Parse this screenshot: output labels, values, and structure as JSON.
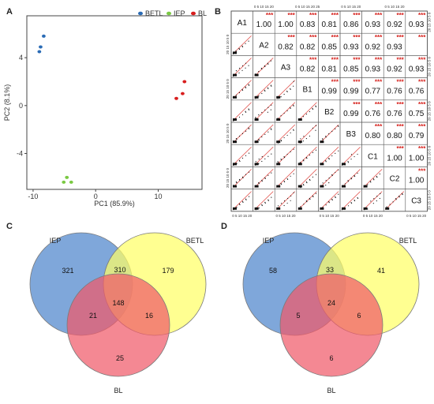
{
  "panel_labels": {
    "a": "A",
    "b": "B",
    "c": "C",
    "d": "D"
  },
  "colors": {
    "BETL": "#2a6bb5",
    "IEP": "#7ac943",
    "BL": "#d81e1e",
    "venn_iep": "#5b8ed0",
    "venn_betl": "#ffff66",
    "venn_bl": "#f05a6a",
    "fit_line": "#e0403a"
  },
  "pca": {
    "xlabel": "PC1 (85.9%)",
    "ylabel": "PC2 (8.1%)",
    "xticks": [
      "-10",
      "0",
      "10"
    ],
    "yticks": [
      "4",
      "0",
      "-4"
    ],
    "legend": [
      "BETL",
      "IEP",
      "BL"
    ]
  },
  "corr": {
    "diag_labels": [
      "A1",
      "A2",
      "A3",
      "B1",
      "B2",
      "B3",
      "C1",
      "C2",
      "C3"
    ],
    "stars": "***",
    "top_ticks": "0 5 10 15 20",
    "top_ticks_cont": "0 5 10 15 20 25",
    "side_ticks": "20 15 10 5 0",
    "values": [
      [
        "1.00",
        "1.00",
        "0.83",
        "0.81",
        "0.86",
        "0.93",
        "0.92",
        "0.93"
      ],
      [
        "0.82",
        "0.82",
        "0.85",
        "0.93",
        "0.92",
        "0.93"
      ],
      [
        "0.82",
        "0.81",
        "0.85",
        "0.93",
        "0.92",
        "0.93"
      ],
      [
        "0.99",
        "0.99",
        "0.77",
        "0.76",
        "0.76"
      ],
      [
        "0.99",
        "0.76",
        "0.76",
        "0.75"
      ],
      [
        "0.80",
        "0.80",
        "0.79"
      ],
      [
        "1.00",
        "1.00"
      ],
      [
        "1.00"
      ]
    ]
  },
  "venn_c": {
    "labels": [
      "IEP",
      "BETL",
      "BL"
    ],
    "iep_only": "321",
    "iep_betl": "310",
    "betl_only": "179",
    "all": "148",
    "iep_bl": "21",
    "betl_bl": "16",
    "bl_only": "25"
  },
  "venn_d": {
    "labels": [
      "IEP",
      "BETL",
      "BL"
    ],
    "iep_only": "58",
    "iep_betl": "33",
    "betl_only": "41",
    "all": "24",
    "iep_bl": "5",
    "betl_bl": "6",
    "bl_only": "6"
  },
  "chart_data": [
    {
      "type": "scatter",
      "xlabel": "PC1 (85.9%)",
      "ylabel": "PC2 (8.1%)",
      "xlim": [
        -11,
        17
      ],
      "ylim": [
        -7,
        7.5
      ],
      "series": [
        {
          "name": "BETL",
          "points": [
            [
              -8.3,
              5.8
            ],
            [
              -8.8,
              4.9
            ],
            [
              -9.0,
              4.5
            ]
          ]
        },
        {
          "name": "IEP",
          "points": [
            [
              -4.6,
              -6.0
            ],
            [
              -5.1,
              -6.4
            ],
            [
              -3.9,
              -6.4
            ]
          ]
        },
        {
          "name": "BL",
          "points": [
            [
              14.2,
              2.0
            ],
            [
              13.9,
              1.0
            ],
            [
              12.9,
              0.6
            ]
          ]
        }
      ]
    }
  ]
}
